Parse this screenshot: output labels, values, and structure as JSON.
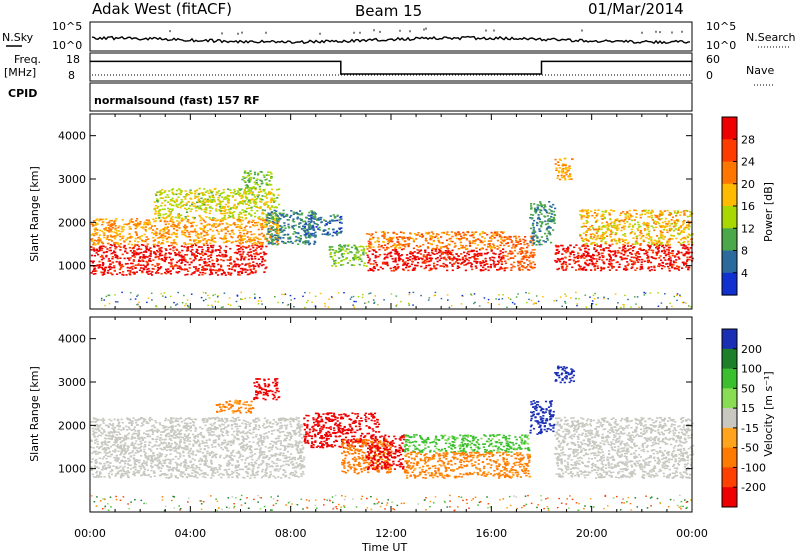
{
  "header": {
    "station": "Adak West (fitACF)",
    "beam": "Beam 15",
    "date": "01/Mar/2014"
  },
  "panels": {
    "nsky_label": "N.Sky",
    "nsearch_label": "N.Search",
    "freq_label": "Freq.",
    "freq_unit": "[MHz]",
    "nave_label": "Nave",
    "cpid_label": "CPID",
    "cpid_value": "normalsound (fast) 157 RF",
    "nsky_ticks": [
      "10^5",
      "10^0"
    ],
    "nsearch_ticks": [
      "10^5",
      "10^0"
    ],
    "freq_ticks": [
      "18",
      "8"
    ],
    "nave_ticks": [
      "60",
      "0"
    ]
  },
  "axes": {
    "ylabel": "Slant Range [km]",
    "xlabel": "Time UT",
    "x_ticks": [
      "00:00",
      "04:00",
      "08:00",
      "12:00",
      "16:00",
      "20:00",
      "00:00"
    ],
    "y_ticks": [
      "1000",
      "2000",
      "3000",
      "4000"
    ]
  },
  "colorbars": {
    "power": {
      "label": "Power [dB]",
      "ticks": [
        "28",
        "24",
        "20",
        "16",
        "12",
        "8",
        "4"
      ],
      "colors": [
        "#ee0000",
        "#ff3c00",
        "#ff7700",
        "#ffbb00",
        "#a8d800",
        "#4aa84a",
        "#2b6a9c",
        "#1030d0"
      ]
    },
    "velocity": {
      "label": "Velocity [m s⁻¹]",
      "ticks": [
        "200",
        "100",
        "50",
        "15",
        "-15",
        "-50",
        "-100",
        "-200"
      ],
      "colors": [
        "#1a2fb4",
        "#1e7f2a",
        "#3bbf2f",
        "#88dd55",
        "#c8c8c0",
        "#ffa41c",
        "#ff7a00",
        "#ff4000",
        "#ee0000"
      ]
    }
  },
  "chart_data": {
    "type": "heatmap",
    "x_unit": "hours UT",
    "xlim": [
      0,
      24
    ],
    "ylim": [
      0,
      4500
    ],
    "frequency_series": [
      {
        "x": 0,
        "y": 15
      },
      {
        "x": 10,
        "y": 15
      },
      {
        "x": 10,
        "y": 10.5
      },
      {
        "x": 18,
        "y": 10.5
      },
      {
        "x": 18,
        "y": 15
      },
      {
        "x": 24,
        "y": 15
      }
    ],
    "power_regions": [
      {
        "x": [
          0,
          7.0
        ],
        "y": [
          800,
          1500
        ],
        "level": 30
      },
      {
        "x": [
          0,
          7.5
        ],
        "y": [
          1500,
          2100
        ],
        "level": 20
      },
      {
        "x": [
          2.5,
          7.5
        ],
        "y": [
          2100,
          2800
        ],
        "level": 15
      },
      {
        "x": [
          6.0,
          7.2
        ],
        "y": [
          2800,
          3200
        ],
        "level": 12
      },
      {
        "x": [
          7.0,
          9.0
        ],
        "y": [
          1500,
          2300
        ],
        "level": 8
      },
      {
        "x": [
          8.5,
          10.0
        ],
        "y": [
          1700,
          2200
        ],
        "level": 6
      },
      {
        "x": [
          9.5,
          11.0
        ],
        "y": [
          1000,
          1500
        ],
        "level": 12
      },
      {
        "x": [
          11.0,
          16.5
        ],
        "y": [
          900,
          1400
        ],
        "level": 30
      },
      {
        "x": [
          11.0,
          16.5
        ],
        "y": [
          1400,
          1800
        ],
        "level": 22
      },
      {
        "x": [
          16.5,
          17.7
        ],
        "y": [
          900,
          1700
        ],
        "level": 24
      },
      {
        "x": [
          17.5,
          18.5
        ],
        "y": [
          1500,
          2500
        ],
        "level": 8
      },
      {
        "x": [
          18.5,
          24
        ],
        "y": [
          900,
          1500
        ],
        "level": 30
      },
      {
        "x": [
          19.5,
          24
        ],
        "y": [
          1500,
          2300
        ],
        "level": 18
      },
      {
        "x": [
          18.5,
          19.2
        ],
        "y": [
          3000,
          3500
        ],
        "level": 20
      }
    ],
    "velocity_regions": [
      {
        "x": [
          0,
          8.5
        ],
        "y": [
          800,
          2200
        ],
        "level": 0
      },
      {
        "x": [
          5.0,
          6.5
        ],
        "y": [
          2300,
          2600
        ],
        "level": -60
      },
      {
        "x": [
          6.5,
          7.5
        ],
        "y": [
          2600,
          3100
        ],
        "level": -220
      },
      {
        "x": [
          8.5,
          11.5
        ],
        "y": [
          1500,
          2300
        ],
        "level": -220
      },
      {
        "x": [
          10.0,
          12.0
        ],
        "y": [
          900,
          1700
        ],
        "level": -80
      },
      {
        "x": [
          11.0,
          12.5
        ],
        "y": [
          1000,
          1800
        ],
        "level": -220
      },
      {
        "x": [
          12.5,
          17.5
        ],
        "y": [
          1400,
          1800
        ],
        "level": 60
      },
      {
        "x": [
          12.5,
          17.5
        ],
        "y": [
          800,
          1400
        ],
        "level": -60
      },
      {
        "x": [
          17.5,
          18.5
        ],
        "y": [
          1800,
          2600
        ],
        "level": 220
      },
      {
        "x": [
          18.5,
          24
        ],
        "y": [
          800,
          2200
        ],
        "level": 0
      },
      {
        "x": [
          18.5,
          19.3
        ],
        "y": [
          3000,
          3400
        ],
        "level": 220
      }
    ]
  }
}
